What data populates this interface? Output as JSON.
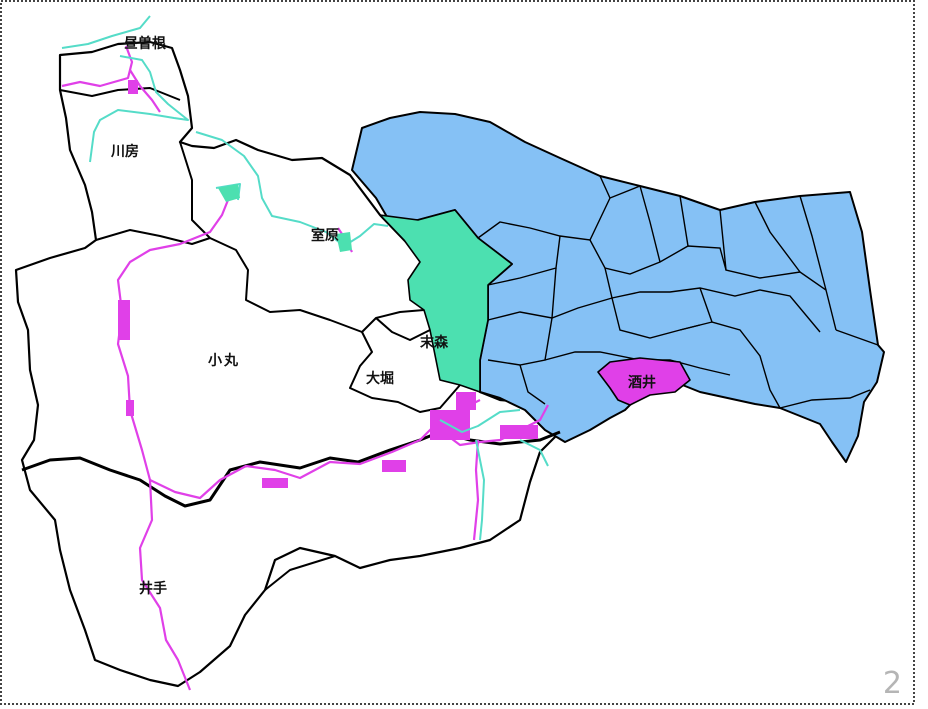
{
  "map": {
    "labels": {
      "hirusone": "昼曽根",
      "kawabo": "川房",
      "murohara": "室原",
      "komaru": "小丸",
      "suemori": "末森",
      "ohori": "大堀",
      "sakai": "酒井",
      "ide": "井手"
    },
    "colors": {
      "east_region_fill": "#85c1f5",
      "suemori_fill": "#4ce0b0",
      "sakai_fill": "#e040e8",
      "road": "#e040e8",
      "river": "#55dcc8",
      "border": "#000000"
    }
  },
  "page": {
    "number": "2"
  }
}
